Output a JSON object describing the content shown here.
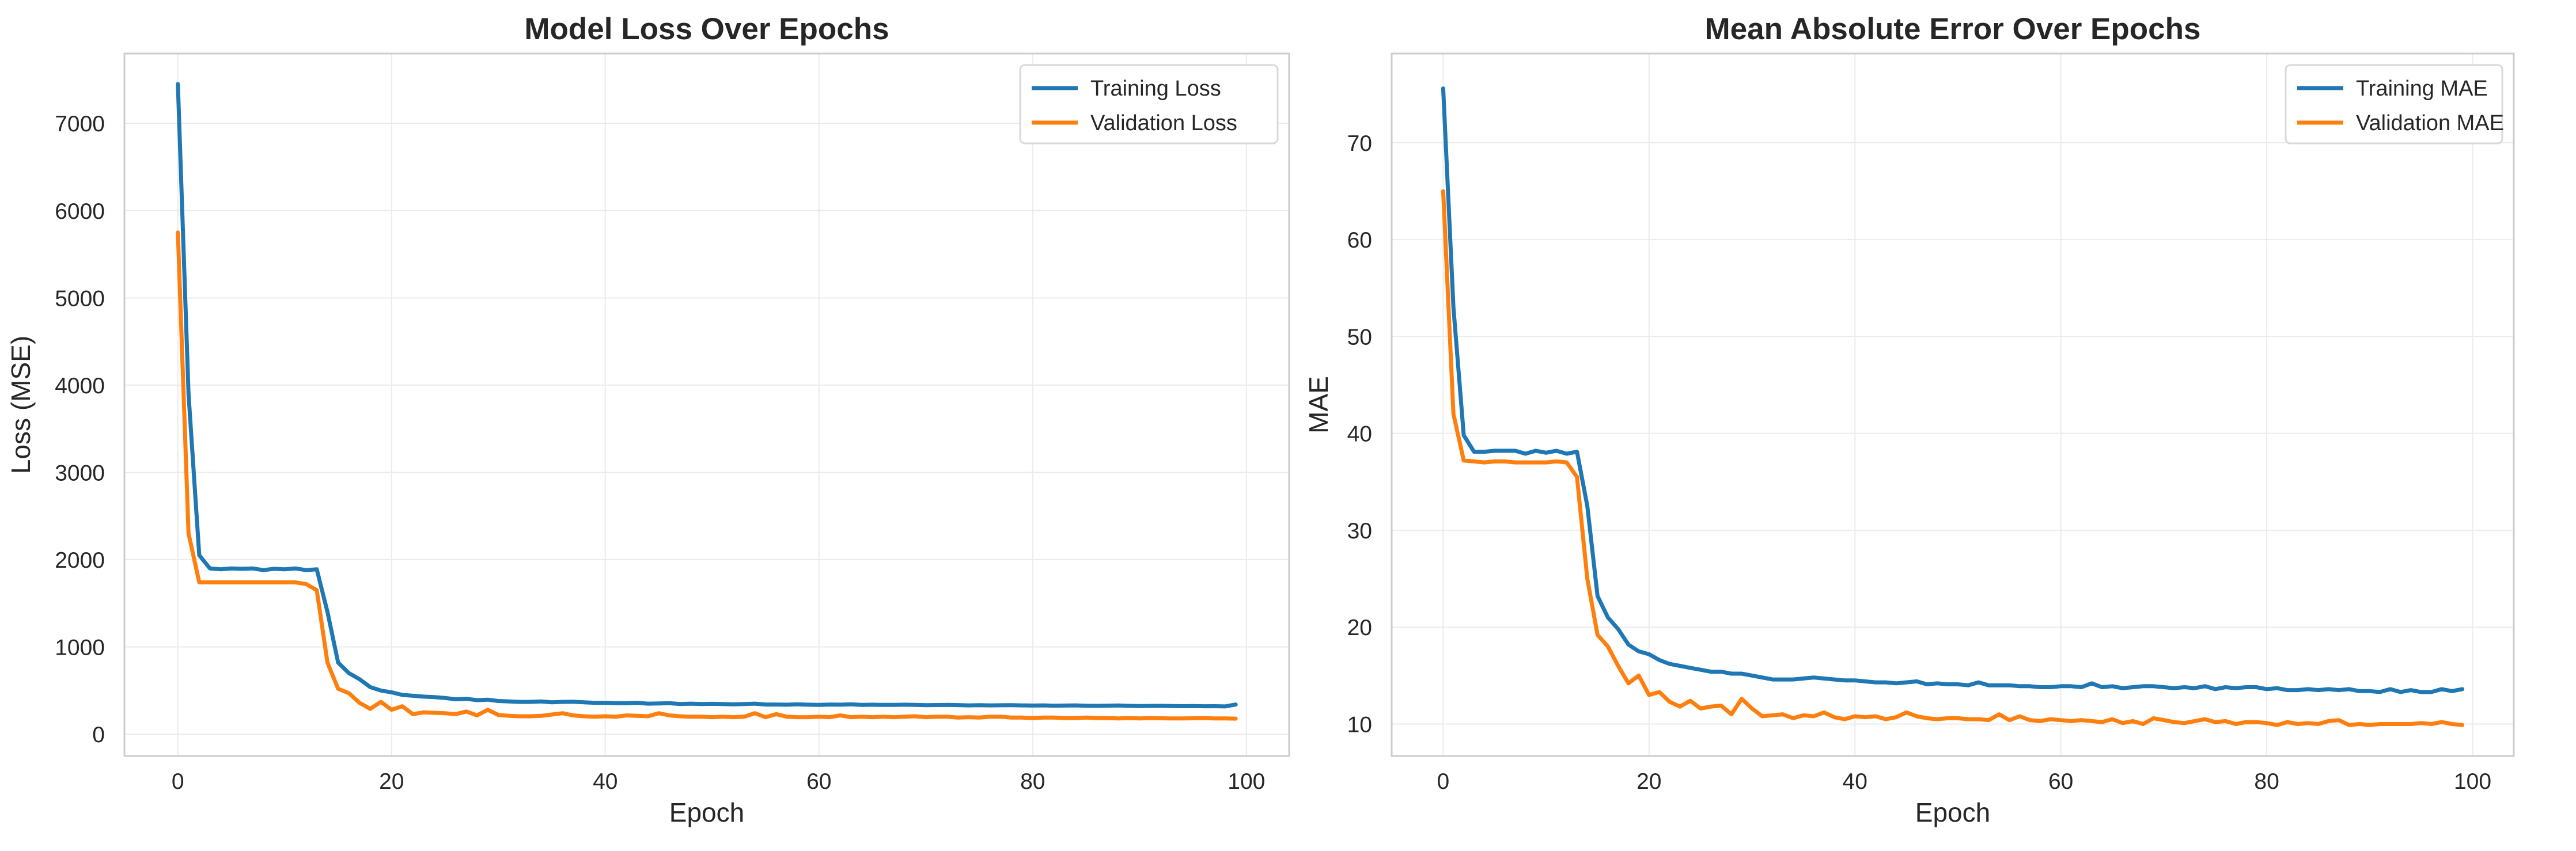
{
  "chart_data": [
    {
      "type": "line",
      "title": "Model Loss Over Epochs",
      "xlabel": "Epoch",
      "ylabel": "Loss (MSE)",
      "xlim": [
        -5,
        104
      ],
      "ylim": [
        -250,
        7800
      ],
      "xticks": [
        0,
        20,
        40,
        60,
        80,
        100
      ],
      "yticks": [
        0,
        1000,
        2000,
        3000,
        4000,
        5000,
        6000,
        7000
      ],
      "grid": true,
      "legend_position": "top-right",
      "series": [
        {
          "name": "Training Loss",
          "color": "#1f77b4",
          "x": [
            0,
            1,
            2,
            3,
            4,
            5,
            6,
            7,
            8,
            9,
            10,
            11,
            12,
            13,
            14,
            15,
            16,
            17,
            18,
            19,
            20,
            21,
            22,
            23,
            24,
            25,
            26,
            27,
            28,
            29,
            30,
            31,
            32,
            33,
            34,
            35,
            36,
            37,
            38,
            39,
            40,
            41,
            42,
            43,
            44,
            45,
            46,
            47,
            48,
            49,
            50,
            51,
            52,
            53,
            54,
            55,
            56,
            57,
            58,
            59,
            60,
            61,
            62,
            63,
            64,
            65,
            66,
            67,
            68,
            69,
            70,
            71,
            72,
            73,
            74,
            75,
            76,
            77,
            78,
            79,
            80,
            81,
            82,
            83,
            84,
            85,
            86,
            87,
            88,
            89,
            90,
            91,
            92,
            93,
            94,
            95,
            96,
            97,
            98,
            99
          ],
          "y": [
            7450,
            3900,
            2050,
            1900,
            1890,
            1900,
            1895,
            1900,
            1880,
            1895,
            1890,
            1900,
            1880,
            1890,
            1400,
            820,
            700,
            630,
            540,
            500,
            480,
            450,
            440,
            430,
            425,
            415,
            400,
            405,
            390,
            395,
            380,
            375,
            370,
            370,
            375,
            365,
            370,
            372,
            365,
            360,
            360,
            355,
            355,
            360,
            350,
            352,
            355,
            345,
            350,
            345,
            348,
            345,
            342,
            345,
            350,
            340,
            340,
            338,
            342,
            338,
            335,
            340,
            338,
            342,
            335,
            338,
            335,
            336,
            338,
            335,
            332,
            334,
            336,
            333,
            330,
            332,
            330,
            331,
            332,
            330,
            328,
            330,
            327,
            328,
            330,
            326,
            325,
            327,
            329,
            325,
            322,
            324,
            325,
            323,
            321,
            322,
            320,
            321,
            318,
            340
          ]
        },
        {
          "name": "Validation Loss",
          "color": "#ff7f0e",
          "x": [
            0,
            1,
            2,
            3,
            4,
            5,
            6,
            7,
            8,
            9,
            10,
            11,
            12,
            13,
            14,
            15,
            16,
            17,
            18,
            19,
            20,
            21,
            22,
            23,
            24,
            25,
            26,
            27,
            28,
            29,
            30,
            31,
            32,
            33,
            34,
            35,
            36,
            37,
            38,
            39,
            40,
            41,
            42,
            43,
            44,
            45,
            46,
            47,
            48,
            49,
            50,
            51,
            52,
            53,
            54,
            55,
            56,
            57,
            58,
            59,
            60,
            61,
            62,
            63,
            64,
            65,
            66,
            67,
            68,
            69,
            70,
            71,
            72,
            73,
            74,
            75,
            76,
            77,
            78,
            79,
            80,
            81,
            82,
            83,
            84,
            85,
            86,
            87,
            88,
            89,
            90,
            91,
            92,
            93,
            94,
            95,
            96,
            97,
            98,
            99
          ],
          "y": [
            5750,
            2300,
            1740,
            1740,
            1740,
            1740,
            1740,
            1740,
            1740,
            1740,
            1740,
            1740,
            1720,
            1650,
            820,
            520,
            470,
            360,
            290,
            370,
            280,
            320,
            230,
            250,
            245,
            240,
            230,
            260,
            215,
            280,
            220,
            210,
            205,
            205,
            210,
            225,
            240,
            215,
            205,
            200,
            205,
            200,
            215,
            210,
            205,
            240,
            215,
            205,
            200,
            200,
            195,
            200,
            195,
            200,
            240,
            195,
            230,
            200,
            195,
            195,
            200,
            195,
            215,
            195,
            200,
            195,
            200,
            195,
            200,
            205,
            195,
            200,
            200,
            190,
            195,
            190,
            200,
            200,
            190,
            190,
            185,
            190,
            190,
            185,
            185,
            190,
            185,
            185,
            180,
            185,
            180,
            185,
            182,
            180,
            180,
            182,
            185,
            180,
            180,
            178
          ]
        }
      ]
    },
    {
      "type": "line",
      "title": "Mean Absolute Error Over Epochs",
      "xlabel": "Epoch",
      "ylabel": "MAE",
      "xlim": [
        -5,
        104
      ],
      "ylim": [
        6.7,
        79.2
      ],
      "xticks": [
        0,
        20,
        40,
        60,
        80,
        100
      ],
      "yticks": [
        10,
        20,
        30,
        40,
        50,
        60,
        70
      ],
      "grid": true,
      "legend_position": "top-right",
      "series": [
        {
          "name": "Training MAE",
          "color": "#1f77b4",
          "x": [
            0,
            1,
            2,
            3,
            4,
            5,
            6,
            7,
            8,
            9,
            10,
            11,
            12,
            13,
            14,
            15,
            16,
            17,
            18,
            19,
            20,
            21,
            22,
            23,
            24,
            25,
            26,
            27,
            28,
            29,
            30,
            31,
            32,
            33,
            34,
            35,
            36,
            37,
            38,
            39,
            40,
            41,
            42,
            43,
            44,
            45,
            46,
            47,
            48,
            49,
            50,
            51,
            52,
            53,
            54,
            55,
            56,
            57,
            58,
            59,
            60,
            61,
            62,
            63,
            64,
            65,
            66,
            67,
            68,
            69,
            70,
            71,
            72,
            73,
            74,
            75,
            76,
            77,
            78,
            79,
            80,
            81,
            82,
            83,
            84,
            85,
            86,
            87,
            88,
            89,
            90,
            91,
            92,
            93,
            94,
            95,
            96,
            97,
            98,
            99
          ],
          "y": [
            75.6,
            53,
            39.8,
            38.1,
            38.1,
            38.2,
            38.2,
            38.2,
            37.9,
            38.2,
            38,
            38.2,
            37.9,
            38.1,
            32.5,
            23.2,
            21,
            19.8,
            18.2,
            17.5,
            17.2,
            16.6,
            16.2,
            16,
            15.8,
            15.6,
            15.4,
            15.4,
            15.2,
            15.2,
            15,
            14.8,
            14.6,
            14.6,
            14.6,
            14.7,
            14.8,
            14.7,
            14.6,
            14.5,
            14.5,
            14.4,
            14.3,
            14.3,
            14.2,
            14.3,
            14.4,
            14.1,
            14.2,
            14.1,
            14.1,
            14,
            14.3,
            14,
            14,
            14,
            13.9,
            13.9,
            13.8,
            13.8,
            13.9,
            13.9,
            13.8,
            14.2,
            13.8,
            13.9,
            13.7,
            13.8,
            13.9,
            13.9,
            13.8,
            13.7,
            13.8,
            13.7,
            13.9,
            13.6,
            13.8,
            13.7,
            13.8,
            13.8,
            13.6,
            13.7,
            13.5,
            13.5,
            13.6,
            13.5,
            13.6,
            13.5,
            13.6,
            13.4,
            13.4,
            13.3,
            13.6,
            13.3,
            13.5,
            13.3,
            13.3,
            13.6,
            13.4,
            13.6
          ]
        },
        {
          "name": "Validation MAE",
          "color": "#ff7f0e",
          "x": [
            0,
            1,
            2,
            3,
            4,
            5,
            6,
            7,
            8,
            9,
            10,
            11,
            12,
            13,
            14,
            15,
            16,
            17,
            18,
            19,
            20,
            21,
            22,
            23,
            24,
            25,
            26,
            27,
            28,
            29,
            30,
            31,
            32,
            33,
            34,
            35,
            36,
            37,
            38,
            39,
            40,
            41,
            42,
            43,
            44,
            45,
            46,
            47,
            48,
            49,
            50,
            51,
            52,
            53,
            54,
            55,
            56,
            57,
            58,
            59,
            60,
            61,
            62,
            63,
            64,
            65,
            66,
            67,
            68,
            69,
            70,
            71,
            72,
            73,
            74,
            75,
            76,
            77,
            78,
            79,
            80,
            81,
            82,
            83,
            84,
            85,
            86,
            87,
            88,
            89,
            90,
            91,
            92,
            93,
            94,
            95,
            96,
            97,
            98,
            99
          ],
          "y": [
            65,
            42,
            37.2,
            37.1,
            37,
            37.1,
            37.1,
            37,
            37,
            37,
            37,
            37.1,
            37,
            35.5,
            25,
            19.2,
            18,
            16,
            14.2,
            15,
            13,
            13.3,
            12.3,
            11.8,
            12.4,
            11.6,
            11.8,
            11.9,
            11,
            12.6,
            11.6,
            10.8,
            10.9,
            11,
            10.6,
            10.9,
            10.8,
            11.2,
            10.7,
            10.5,
            10.8,
            10.7,
            10.8,
            10.5,
            10.7,
            11.2,
            10.8,
            10.6,
            10.5,
            10.6,
            10.6,
            10.5,
            10.5,
            10.4,
            11,
            10.4,
            10.8,
            10.4,
            10.3,
            10.5,
            10.4,
            10.3,
            10.4,
            10.3,
            10.2,
            10.5,
            10.1,
            10.3,
            10,
            10.6,
            10.4,
            10.2,
            10.1,
            10.3,
            10.5,
            10.2,
            10.3,
            10,
            10.2,
            10.2,
            10.1,
            9.9,
            10.2,
            10,
            10.1,
            10,
            10.3,
            10.4,
            9.9,
            10,
            9.9,
            10,
            10,
            10,
            10,
            10.1,
            10,
            10.2,
            10,
            9.9
          ]
        }
      ]
    }
  ]
}
